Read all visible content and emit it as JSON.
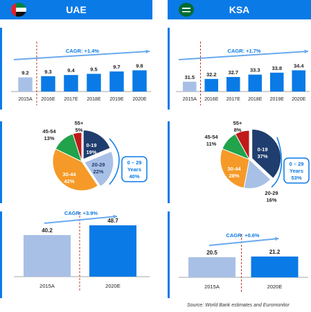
{
  "uae": {
    "title": "UAE",
    "population_chart": {
      "type": "bar",
      "categories": [
        "2015A",
        "2016E",
        "2017E",
        "2018E",
        "2019E",
        "2020E"
      ],
      "values": [
        9.2,
        9.3,
        9.4,
        9.5,
        9.7,
        9.8
      ],
      "cagr": "CAGR: +1.4%"
    },
    "age_chart": {
      "type": "pie",
      "slices": [
        {
          "label": "0-19",
          "value": 19,
          "text": "19%",
          "color": "#1f3d6e"
        },
        {
          "label": "20-29",
          "value": 22,
          "text": "22%",
          "color": "#a9c0e6"
        },
        {
          "label": "30-44",
          "value": 42,
          "text": "42%",
          "color": "#f59a28"
        },
        {
          "label": "45-54",
          "value": 13,
          "text": "13%",
          "color": "#20a34a"
        },
        {
          "label": "55+",
          "value": 5,
          "text": "5%",
          "color": "#c01a1a"
        }
      ],
      "callout_label": "0 – 29",
      "callout_years": "Years",
      "callout_value": "40%"
    },
    "spend_chart": {
      "type": "bar",
      "categories": [
        "2015A",
        "2020E"
      ],
      "values": [
        40.2,
        48.7
      ],
      "cagr": "CAGR: +3.9%"
    }
  },
  "ksa": {
    "title": "KSA",
    "population_chart": {
      "type": "bar",
      "categories": [
        "2015A",
        "2016E",
        "2017E",
        "2018E",
        "2019E",
        "2020E"
      ],
      "values": [
        31.5,
        32.2,
        32.7,
        33.3,
        33.8,
        34.4
      ],
      "cagr": "CAGR: +1.7%"
    },
    "age_chart": {
      "type": "pie",
      "slices": [
        {
          "label": "0-19",
          "value": 37,
          "text": "37%",
          "color": "#1f3d6e"
        },
        {
          "label": "20-29",
          "value": 16,
          "text": "16%",
          "color": "#a9c0e6"
        },
        {
          "label": "30-44",
          "value": 28,
          "text": "28%",
          "color": "#f59a28"
        },
        {
          "label": "45-54",
          "value": 11,
          "text": "11%",
          "color": "#20a34a"
        },
        {
          "label": "55+",
          "value": 8,
          "text": "8%",
          "color": "#c01a1a"
        }
      ],
      "callout_label": "0 – 29",
      "callout_years": "Years",
      "callout_value": "53%"
    },
    "spend_chart": {
      "type": "bar",
      "categories": [
        "2015A",
        "2020E"
      ],
      "values": [
        20.5,
        21.2
      ],
      "cagr": "CAGR: +0.6%"
    }
  },
  "source": "Source: World Bank estimates and Euromonitor",
  "colors": {
    "header": "#0a7ae6",
    "bar_actual": "#a9c0e6",
    "bar_estimate": "#0a7ae6",
    "divider": "#c0392b",
    "callout_border": "#0a7ae6"
  }
}
